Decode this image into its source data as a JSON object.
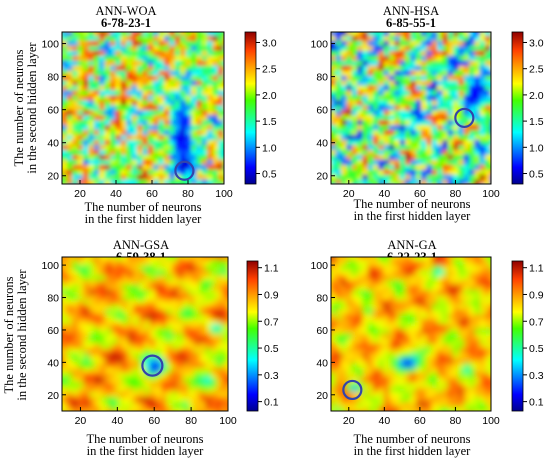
{
  "shared": {
    "xlabel": [
      "The number of neurons",
      "in the first hidden layer"
    ],
    "ylabel": [
      "The number of neurons",
      "in the second hidden layer"
    ]
  },
  "chart_data": [
    {
      "type": "heatmap",
      "title": "ANN-WOA",
      "subtitle": "6-78-23-1",
      "xlim": [
        10,
        100
      ],
      "ylim": [
        15,
        107
      ],
      "xticks": [
        20,
        40,
        60,
        80,
        100
      ],
      "yticks": [
        20,
        40,
        60,
        80,
        100
      ],
      "colorbar": {
        "min": 0.3,
        "max": 3.2,
        "ticks": [
          0.5,
          1.0,
          1.5,
          2.0,
          2.5,
          3.0
        ]
      },
      "optimum": {
        "x": 78,
        "y": 23
      },
      "show_xlabel": true,
      "show_ylabel": true
    },
    {
      "type": "heatmap",
      "title": "ANN-HSA",
      "subtitle": "6-85-55-1",
      "xlim": [
        10,
        100
      ],
      "ylim": [
        15,
        107
      ],
      "xticks": [
        20,
        40,
        60,
        80,
        100
      ],
      "yticks": [
        20,
        40,
        60,
        80,
        100
      ],
      "colorbar": {
        "min": 0.3,
        "max": 3.2,
        "ticks": [
          0.5,
          1.0,
          1.5,
          2.0,
          2.5,
          3.0
        ]
      },
      "optimum": {
        "x": 85,
        "y": 55
      },
      "show_xlabel": true,
      "show_ylabel": false
    },
    {
      "type": "heatmap",
      "title": "ANN-GSA",
      "subtitle": "6-59-38-1",
      "xlim": [
        10,
        100
      ],
      "ylim": [
        10,
        105
      ],
      "xticks": [
        20,
        40,
        60,
        80,
        100
      ],
      "yticks": [
        20,
        40,
        60,
        80,
        100
      ],
      "colorbar": {
        "min": 0.03,
        "max": 1.15,
        "ticks": [
          0.1,
          0.3,
          0.5,
          0.7,
          0.9,
          1.1
        ]
      },
      "optimum": {
        "x": 59,
        "y": 38
      },
      "show_xlabel": true,
      "show_ylabel": true
    },
    {
      "type": "heatmap",
      "title": "ANN-GA",
      "subtitle": "6-22-23-1",
      "xlim": [
        10,
        100
      ],
      "ylim": [
        10,
        105
      ],
      "xticks": [
        20,
        40,
        60,
        80,
        100
      ],
      "yticks": [
        20,
        40,
        60,
        80,
        100
      ],
      "colorbar": {
        "min": 0.03,
        "max": 1.15,
        "ticks": [
          0.1,
          0.3,
          0.5,
          0.7,
          0.9,
          1.1
        ]
      },
      "optimum": {
        "x": 22,
        "y": 23
      },
      "show_xlabel": true,
      "show_ylabel": false
    }
  ]
}
